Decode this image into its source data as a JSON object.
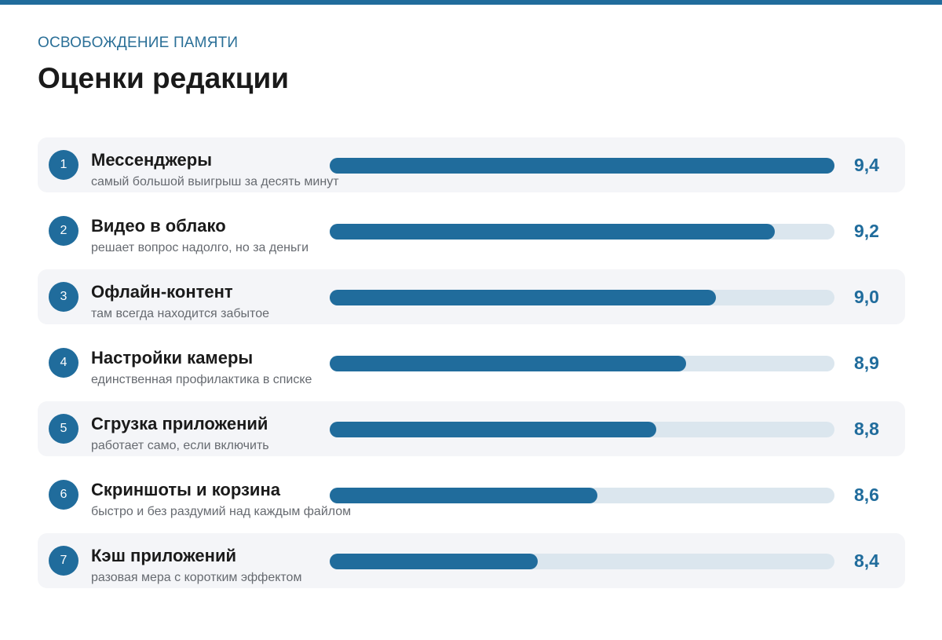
{
  "header": {
    "kicker": "ОСВОБОЖДЕНИЕ ПАМЯТИ",
    "title": "Оценки редакции"
  },
  "colors": {
    "accent": "#206c9c",
    "track": "#dbe6ee",
    "row_shade": "#f4f5f8",
    "kicker": "#2a6f97"
  },
  "chart_data": {
    "type": "bar",
    "orientation": "horizontal",
    "title": "Оценки редакции",
    "xlabel": "",
    "ylabel": "",
    "xlim": [
      8.0,
      9.4
    ],
    "grid": false,
    "categories": [
      "Мессенджеры",
      "Видео в облако",
      "Офлайн-контент",
      "Настройки камеры",
      "Сгрузка приложений",
      "Скриншоты и корзина",
      "Кэш приложений"
    ],
    "values": [
      9.4,
      9.2,
      9.0,
      8.9,
      8.8,
      8.6,
      8.4
    ],
    "items": [
      {
        "rank": "1",
        "name": "Мессенджеры",
        "desc": "самый большой выигрыш за десять минут",
        "score": "9,4",
        "value": 9.4
      },
      {
        "rank": "2",
        "name": "Видео в облако",
        "desc": "решает вопрос надолго, но за деньги",
        "score": "9,2",
        "value": 9.2
      },
      {
        "rank": "3",
        "name": "Офлайн-контент",
        "desc": "там всегда находится забытое",
        "score": "9,0",
        "value": 9.0
      },
      {
        "rank": "4",
        "name": "Настройки камеры",
        "desc": "единственная профилактика в списке",
        "score": "8,9",
        "value": 8.9
      },
      {
        "rank": "5",
        "name": "Сгрузка приложений",
        "desc": "работает само, если включить",
        "score": "8,8",
        "value": 8.8
      },
      {
        "rank": "6",
        "name": "Скриншоты и корзина",
        "desc": "быстро и без раздумий над каждым файлом",
        "score": "8,6",
        "value": 8.6
      },
      {
        "rank": "7",
        "name": "Кэш приложений",
        "desc": "разовая мера с коротким эффектом",
        "score": "8,4",
        "value": 8.4
      }
    ]
  }
}
